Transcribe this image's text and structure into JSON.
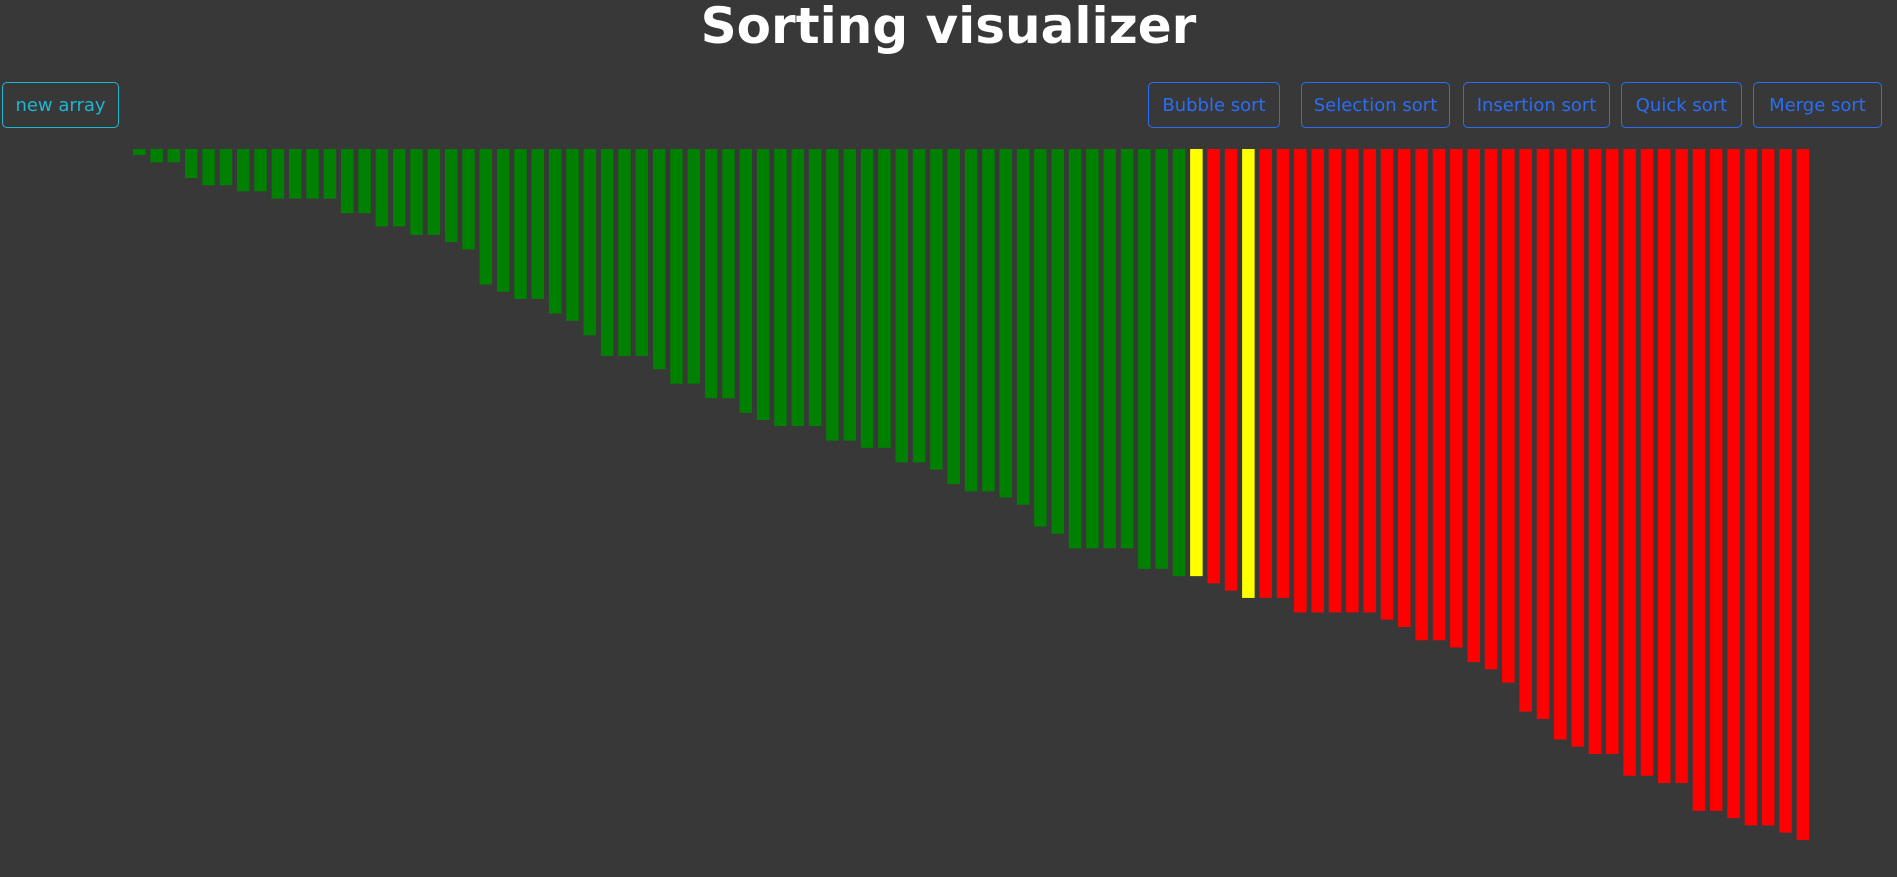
{
  "title": "Sorting visualizer",
  "buttons": {
    "new_array": "new array",
    "algorithms": [
      "Bubble sort",
      "Selection sort",
      "Insertion sort",
      "Quick sort",
      "Merge sort"
    ]
  },
  "bars": {
    "values": [
      5,
      11,
      11,
      24,
      30,
      30,
      35,
      35,
      41,
      41,
      41,
      41,
      53,
      53,
      64,
      64,
      71,
      71,
      77,
      83,
      112,
      118,
      124,
      124,
      136,
      142,
      154,
      171,
      171,
      171,
      182,
      194,
      194,
      206,
      206,
      218,
      224,
      229,
      229,
      229,
      241,
      241,
      247,
      247,
      259,
      259,
      265,
      277,
      283,
      283,
      288,
      294,
      312,
      318,
      330,
      330,
      330,
      330,
      347,
      347,
      353,
      353,
      359,
      365,
      371,
      371,
      371,
      383,
      383,
      383,
      383,
      383,
      389,
      395,
      406,
      406,
      412,
      424,
      430,
      441,
      465,
      471,
      488,
      494,
      500,
      500,
      518,
      518,
      524,
      524,
      547,
      547,
      553,
      559,
      559,
      565,
      571
    ],
    "colors": [
      "green",
      "green",
      "green",
      "green",
      "green",
      "green",
      "green",
      "green",
      "green",
      "green",
      "green",
      "green",
      "green",
      "green",
      "green",
      "green",
      "green",
      "green",
      "green",
      "green",
      "green",
      "green",
      "green",
      "green",
      "green",
      "green",
      "green",
      "green",
      "green",
      "green",
      "green",
      "green",
      "green",
      "green",
      "green",
      "green",
      "green",
      "green",
      "green",
      "green",
      "green",
      "green",
      "green",
      "green",
      "green",
      "green",
      "green",
      "green",
      "green",
      "green",
      "green",
      "green",
      "green",
      "green",
      "green",
      "green",
      "green",
      "green",
      "green",
      "green",
      "green",
      "yellow",
      "red",
      "red",
      "yellow",
      "red",
      "red",
      "red",
      "red",
      "red",
      "red",
      "red",
      "red",
      "red",
      "red",
      "red",
      "red",
      "red",
      "red",
      "red",
      "red",
      "red",
      "red",
      "red",
      "red",
      "red",
      "red",
      "red",
      "red",
      "red",
      "red",
      "red",
      "red",
      "red",
      "red",
      "red",
      "red"
    ]
  }
}
